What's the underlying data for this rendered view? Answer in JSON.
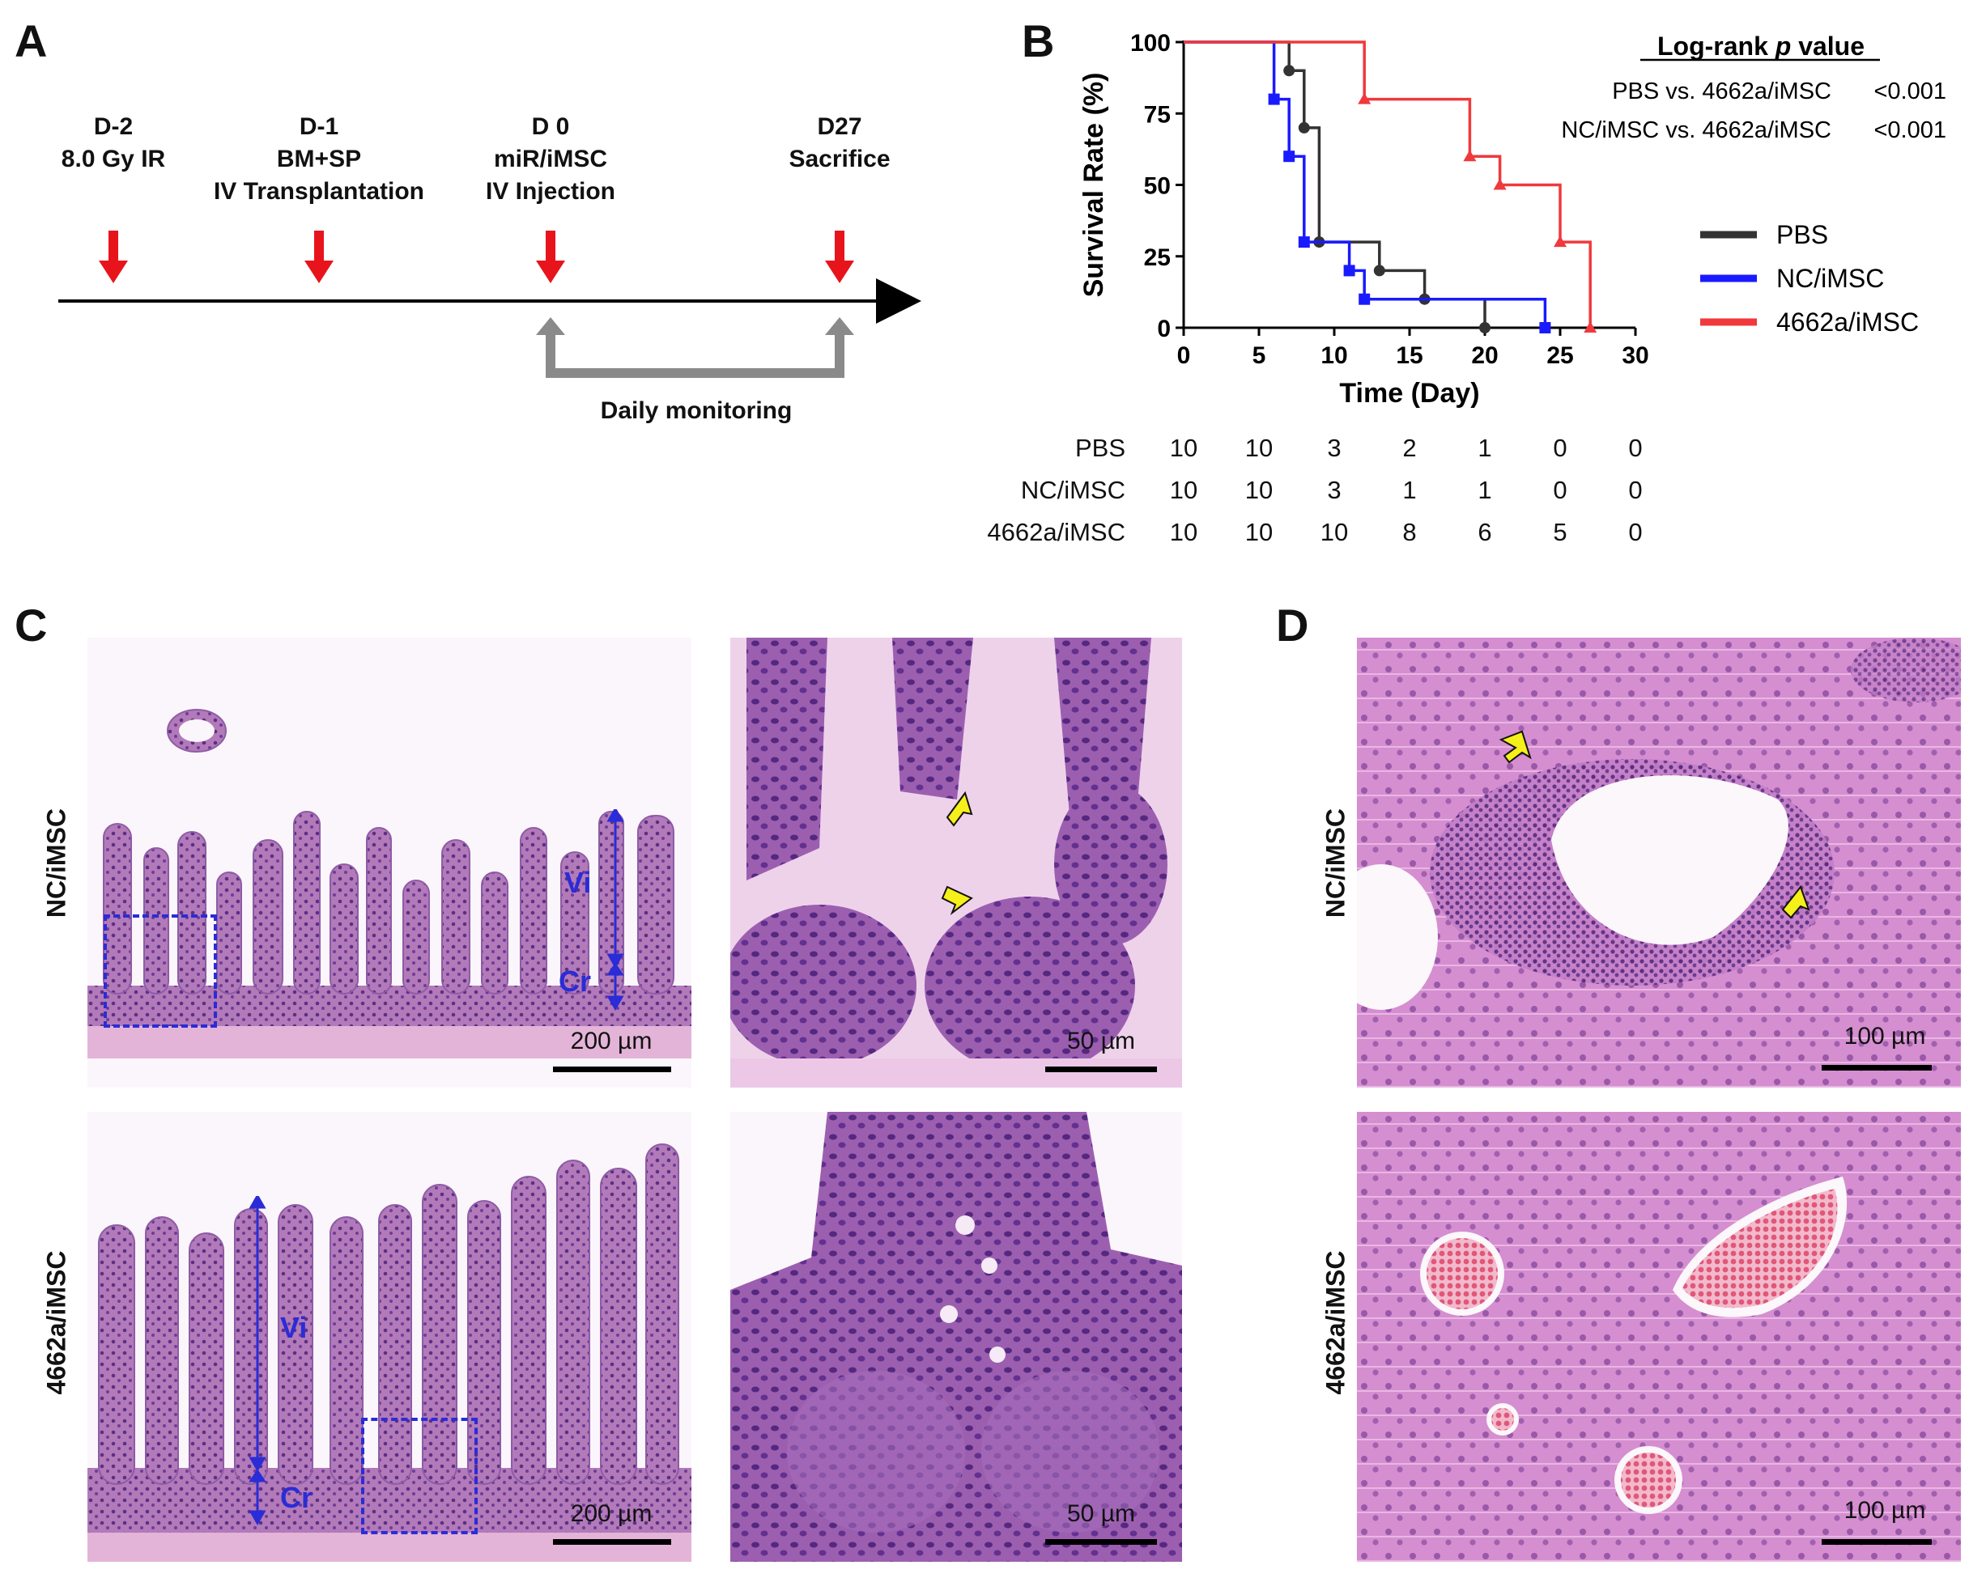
{
  "panels": {
    "a": "A",
    "b": "B",
    "c": "C",
    "d": "D"
  },
  "timeline": {
    "events": [
      {
        "lines": [
          "D-2",
          "8.0 Gy IR"
        ]
      },
      {
        "lines": [
          "D-1",
          "BM+SP",
          "IV Transplantation"
        ]
      },
      {
        "lines": [
          "D 0",
          "miR/iMSC",
          "IV Injection"
        ]
      },
      {
        "lines": [
          "D27",
          "Sacrifice"
        ]
      }
    ],
    "monitoring_label": "Daily monitoring"
  },
  "chart_data": {
    "type": "line",
    "subtype": "kaplan-meier step",
    "xlabel": "Time (Day)",
    "ylabel": "Survival Rate (%)",
    "xlim": [
      0,
      30
    ],
    "ylim": [
      0,
      100
    ],
    "xticks": [
      "0",
      "5",
      "10",
      "15",
      "20",
      "25",
      "30"
    ],
    "yticks": [
      "0",
      "25",
      "50",
      "75",
      "100"
    ],
    "legend_position": "right",
    "series": [
      {
        "name": "PBS",
        "color": "#333333",
        "marker": "circle",
        "x": [
          0,
          7,
          8,
          9,
          13,
          16,
          20
        ],
        "y": [
          100,
          90,
          70,
          30,
          20,
          10,
          0
        ]
      },
      {
        "name": "NC/iMSC",
        "color": "#1a1aff",
        "marker": "square",
        "x": [
          0,
          6,
          7,
          8,
          11,
          12,
          24
        ],
        "y": [
          100,
          80,
          60,
          30,
          20,
          10,
          0
        ]
      },
      {
        "name": "4662a/iMSC",
        "color": "#f0393c",
        "marker": "triangle",
        "x": [
          0,
          12,
          19,
          21,
          25,
          27
        ],
        "y": [
          100,
          80,
          60,
          50,
          30,
          0
        ]
      }
    ],
    "logrank": {
      "title_prefix": "Log-rank ",
      "title_italic": "p",
      "title_suffix": " value",
      "rows": [
        {
          "label": "PBS vs. 4662a/iMSC",
          "value": "<0.001"
        },
        {
          "label": "NC/iMSC vs. 4662a/iMSC",
          "value": "<0.001"
        }
      ]
    },
    "risk_table": [
      {
        "name": "PBS",
        "values": [
          "10",
          "10",
          "3",
          "2",
          "1",
          "0",
          "0"
        ]
      },
      {
        "name": "NC/iMSC",
        "values": [
          "10",
          "10",
          "3",
          "1",
          "1",
          "0",
          "0"
        ]
      },
      {
        "name": "4662a/iMSC",
        "values": [
          "10",
          "10",
          "10",
          "8",
          "6",
          "5",
          "0"
        ]
      }
    ]
  },
  "histology": {
    "row_labels": {
      "top": "NC/iMSC",
      "bottom": "4662a/iMSC"
    },
    "scale_200": "200 µm",
    "scale_50": "50 µm",
    "scale_100": "100 µm",
    "villus_label": "Vi",
    "crypt_label": "Cr",
    "colors": {
      "tissue": "#b77bc0",
      "nuclei": "#6a3a92",
      "background": "#f3e9f3",
      "annotation": "#2a2cd6",
      "arrow": "#f5ef1a"
    }
  }
}
